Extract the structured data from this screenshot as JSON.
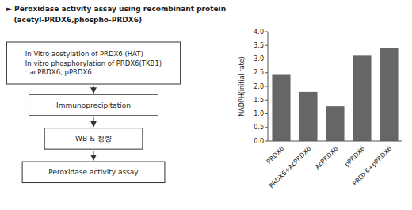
{
  "chart_data": {
    "type": "bar",
    "title": "► Peroxidase activity assay using recombinant protein",
    "subtitle": "   (acetyl-PRDX6,phospho-PRDX6)",
    "annotations": [
      "In Vitro acetylation of PRDX6 (HAT)\nIn vitro phosphorylation of PRDX6(TKB1)\n: acPRDX6, pPRDX6",
      "Immunoprecipitation",
      "WB & 정량",
      "Peroxidase activity assay"
    ],
    "categories": [
      "PRDX6",
      "PRDX6+AcPRDX6",
      "AcPRDX6",
      "pPRDX6",
      "PRDX6+pPRDX6"
    ],
    "values": [
      2.42,
      1.8,
      1.27,
      3.12,
      3.4
    ],
    "color": "#666666",
    "ylabel": "NADPH(initial rate)",
    "ylim": [
      0,
      4
    ],
    "yticks": [
      {
        "value": 0,
        "label": "0.0"
      },
      0.5,
      {
        "value": 1,
        "label": "1.0"
      },
      1.5,
      {
        "value": 2,
        "label": "2.0"
      },
      2.5,
      {
        "value": 3,
        "label": "3.0"
      },
      3.5,
      {
        "value": 4,
        "label": "4.0"
      }
    ],
    "grid": false
  }
}
